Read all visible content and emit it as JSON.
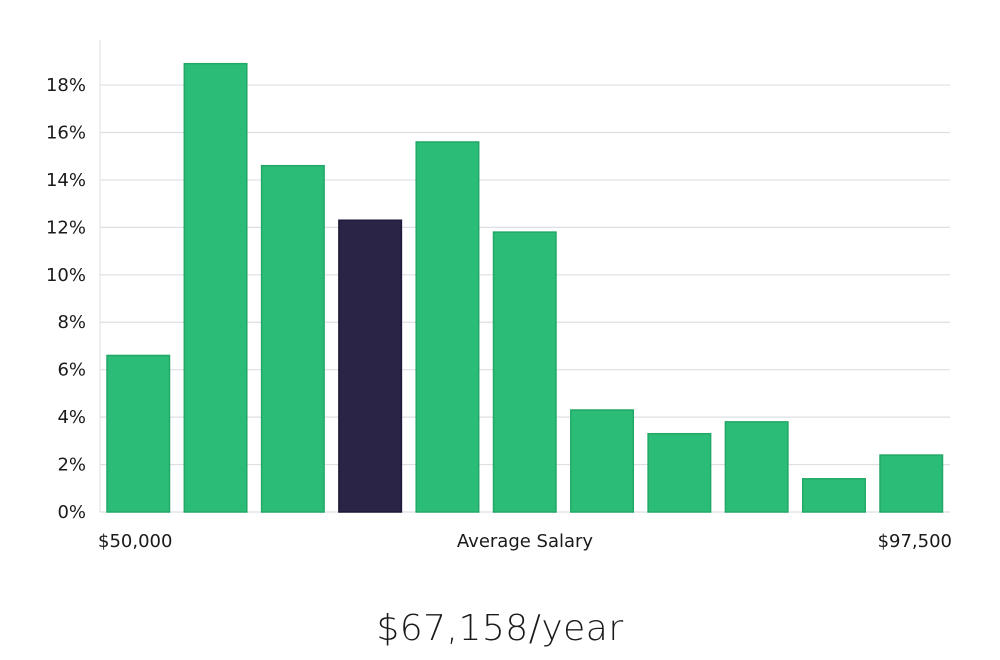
{
  "chart_data": {
    "type": "bar",
    "y_tick_labels": [
      "0%",
      "2%",
      "4%",
      "6%",
      "8%",
      "10%",
      "12%",
      "14%",
      "16%",
      "18%"
    ],
    "y_ticks": [
      0,
      2,
      4,
      6,
      8,
      10,
      12,
      14,
      16,
      18
    ],
    "ylim": [
      0,
      20
    ],
    "values": [
      6.6,
      18.9,
      14.6,
      12.3,
      15.6,
      11.8,
      4.3,
      3.3,
      3.8,
      1.4,
      2.4
    ],
    "highlight_index": 3,
    "x_start_label": "$50,000",
    "x_end_label": "$97,500",
    "xlabel": "Average Salary",
    "grid": true
  },
  "colors": {
    "bar": "#2bbd77",
    "bar_stroke": "#22a866",
    "highlight": "#2a2547",
    "grid": "#dddfe3",
    "axis": "#e4e4e4"
  },
  "salary_text": "$67,158/year"
}
